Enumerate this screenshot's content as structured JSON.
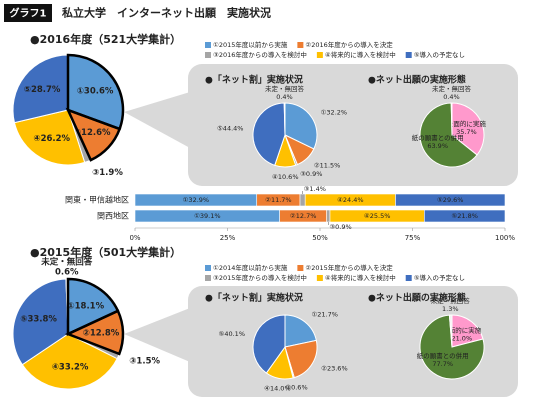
{
  "header": {
    "badge": "グラフ1",
    "title": "私立大学　インターネット出願　実施状況"
  },
  "chart_data": [
    {
      "type": "pie",
      "title": "●2016年度（521大学集計）",
      "values": [
        30.6,
        12.6,
        1.9,
        26.2,
        28.7
      ],
      "value_labels": [
        "①30.6%",
        "②12.6%",
        "③1.9%",
        "④26.2%",
        "⑤28.7%"
      ],
      "colors": [
        "#5b9bd5",
        "#ed7d31",
        "#a5a5a5",
        "#ffc000",
        "#3f6ebf"
      ],
      "highlight": [
        0,
        1
      ],
      "legend": [
        "①2015年度以前から実施",
        "②2016年度からの導入を決定",
        "③2016年度からの導入を検討中",
        "④将来的に導入を検討中",
        "⑤導入の予定なし"
      ]
    },
    {
      "type": "pie",
      "title": "●「ネット割」実施状況",
      "categories": [
        null,
        null,
        null,
        null,
        null,
        "未定・無回答"
      ],
      "values": [
        32.2,
        11.5,
        0.9,
        10.6,
        44.4,
        0.4
      ],
      "value_labels": [
        "①32.2%",
        "②11.5%",
        "③0.9%",
        "④10.6%",
        "⑤44.4%",
        "0.4%"
      ],
      "colors": [
        "#5b9bd5",
        "#ed7d31",
        "#a5a5a5",
        "#ffc000",
        "#3f6ebf",
        "#f2f2f2"
      ]
    },
    {
      "type": "pie",
      "title": "●ネット出願の実施形態",
      "categories": [
        "全面的に実施",
        "紙の願書との併用",
        "未定・無回答"
      ],
      "values": [
        35.7,
        63.9,
        0.4
      ],
      "value_labels": [
        "35.7%",
        "63.9%",
        "0.4%"
      ],
      "colors": [
        "#ff99cc",
        "#548235",
        "#f2f2f2"
      ]
    },
    {
      "type": "bar",
      "orientation": "horizontal",
      "stacked": true,
      "categories": [
        "関東・甲信越地区",
        "関西地区"
      ],
      "series": [
        {
          "color": "#5b9bd5",
          "values": [
            32.9,
            39.1
          ],
          "value_labels": [
            "①32.9%",
            "①39.1%"
          ]
        },
        {
          "color": "#ed7d31",
          "values": [
            11.7,
            12.7
          ],
          "value_labels": [
            "②11.7%",
            "②12.7%"
          ]
        },
        {
          "color": "#a5a5a5",
          "values": [
            1.4,
            0.9
          ],
          "value_labels": [
            "③1.4%",
            "③0.9%"
          ]
        },
        {
          "color": "#ffc000",
          "values": [
            24.4,
            25.5
          ],
          "value_labels": [
            "④24.4%",
            "④25.5%"
          ]
        },
        {
          "color": "#3f6ebf",
          "values": [
            29.6,
            21.8
          ],
          "value_labels": [
            "⑤29.6%",
            "⑤21.8%"
          ]
        }
      ],
      "xlim": [
        0,
        100
      ],
      "xticks": [
        {
          "value": 0,
          "label": "0%"
        },
        {
          "value": 25,
          "label": "25%"
        },
        {
          "value": 50,
          "label": "50%"
        },
        {
          "value": 75,
          "label": "75%"
        },
        {
          "value": 100,
          "label": "100%"
        }
      ]
    },
    {
      "type": "pie",
      "title": "●2015年度（501大学集計）",
      "categories": [
        null,
        null,
        null,
        null,
        null,
        "未定・無回答"
      ],
      "values": [
        18.1,
        12.8,
        1.5,
        33.2,
        33.8,
        0.6
      ],
      "value_labels": [
        "①18.1%",
        "②12.8%",
        "③1.5%",
        "④33.2%",
        "⑤33.8%",
        "0.6%"
      ],
      "colors": [
        "#5b9bd5",
        "#ed7d31",
        "#a5a5a5",
        "#ffc000",
        "#3f6ebf",
        "#f2f2f2"
      ],
      "highlight": [
        0,
        1
      ],
      "legend": [
        "①2014年度以前から実施",
        "②2015年度からの導入を決定",
        "③2015年度からの導入を検討中",
        "④将来的に導入を検討中",
        "⑤導入の予定なし"
      ]
    },
    {
      "type": "pie",
      "title": "●「ネット割」実施状況",
      "values": [
        21.7,
        23.6,
        0.6,
        14.0,
        40.1
      ],
      "value_labels": [
        "①21.7%",
        "②23.6%",
        "③0.6%",
        "④14.0%",
        "⑤40.1%"
      ],
      "colors": [
        "#5b9bd5",
        "#ed7d31",
        "#a5a5a5",
        "#ffc000",
        "#3f6ebf"
      ]
    },
    {
      "type": "pie",
      "title": "●ネット出願の実施形態",
      "categories": [
        "全面的に実施",
        "紙の願書との併用",
        "未定・無回答"
      ],
      "values": [
        21.0,
        77.7,
        1.3
      ],
      "value_labels": [
        "21.0%",
        "77.7%",
        "1.3%"
      ],
      "colors": [
        "#ff99cc",
        "#548235",
        "#f2f2f2"
      ]
    }
  ]
}
